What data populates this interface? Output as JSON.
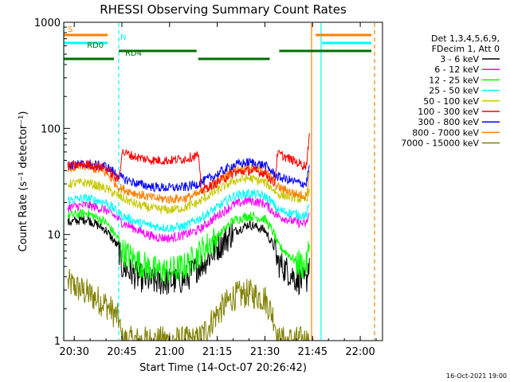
{
  "chart_data": {
    "type": "line",
    "title": "RHESSI Observing Summary Count Rates",
    "xlabel": "Start Time (14-Oct-07 20:26:42)",
    "ylabel": "Count Rate (s⁻¹ detector⁻¹)",
    "xlim": [
      "20:26:42",
      "22:07:00"
    ],
    "ylim": [
      1,
      1000
    ],
    "yscale": "log",
    "x_ticks": [
      "20:30",
      "20:45",
      "21:00",
      "21:15",
      "21:30",
      "21:45",
      "22:00"
    ],
    "y_ticks": [
      "1",
      "10",
      "100",
      "1000"
    ],
    "legend_header": [
      "Det 1,3,4,5,6,9,",
      "FDecim 1, Att 0"
    ],
    "legend_position": "right",
    "timestamp": "16-Oct-2021 19:00",
    "annotations": [
      {
        "text": "S",
        "color": "#ff8000"
      },
      {
        "text": "N",
        "color": "#00ffff"
      },
      {
        "text": "RD0",
        "color": "#007000"
      },
      {
        "text": "RD4",
        "color": "#007000"
      }
    ],
    "vertical_markers": [
      {
        "time": "20:26:42",
        "color": "#00ffff",
        "style": "solid"
      },
      {
        "time": "20:44:00",
        "color": "#00ffff",
        "style": "dashed"
      },
      {
        "time": "21:44:40",
        "color": "#ff8000",
        "style": "solid"
      },
      {
        "time": "21:47:40",
        "color": "#00ffff",
        "style": "solid"
      },
      {
        "time": "22:04:30",
        "color": "#ff8000",
        "style": "dashed"
      }
    ],
    "flag_bars": [
      {
        "label": "S",
        "color": "#ff8000",
        "y_level": 1,
        "segments": [
          [
            "20:26:42",
            "20:40:30"
          ],
          [
            "21:46:00",
            "22:03:30"
          ]
        ]
      },
      {
        "label": "N",
        "color": "#00ffff",
        "y_level": 2,
        "segments": [
          [
            "20:26:42",
            "20:40:30"
          ],
          [
            "21:48:00",
            "22:03:30"
          ]
        ]
      },
      {
        "label": "RD0",
        "color": "#007000",
        "y_level": 3,
        "segments": [
          [
            "20:44:00",
            "21:08:30"
          ],
          [
            "21:34:30",
            "22:03:30"
          ]
        ]
      },
      {
        "label": "RD4",
        "color": "#007000",
        "y_level": 4,
        "segments": [
          [
            "20:26:42",
            "20:42:30"
          ],
          [
            "21:09:00",
            "21:31:30"
          ]
        ]
      }
    ],
    "x": [
      "20:28",
      "20:34",
      "20:40",
      "20:44",
      "20:45",
      "20:50",
      "20:55",
      "21:00",
      "21:05",
      "21:09",
      "21:10",
      "21:15",
      "21:20",
      "21:25",
      "21:30",
      "21:33",
      "21:34",
      "21:40",
      "21:43",
      "21:44"
    ],
    "series": [
      {
        "name": "3 - 6 keV",
        "color": "#000000",
        "values": [
          13,
          14,
          11,
          7.5,
          5.0,
          4.0,
          3.6,
          3.6,
          3.8,
          5.0,
          5.2,
          7.5,
          10.5,
          12.5,
          11,
          7.5,
          5.5,
          3.8,
          3.5,
          6
        ]
      },
      {
        "name": "6 - 12 keV",
        "color": "#ff00ff",
        "values": [
          18,
          19,
          17,
          14,
          13,
          11,
          9.5,
          9.2,
          10,
          11,
          11.5,
          15,
          19,
          21,
          19.5,
          16,
          15,
          13,
          12.5,
          16
        ]
      },
      {
        "name": "12 - 25 keV",
        "color": "#00ff00",
        "values": [
          15,
          16,
          13,
          9,
          7,
          5.5,
          4.6,
          4.5,
          5,
          6.5,
          7,
          9.5,
          13.5,
          15,
          14,
          10,
          8,
          5.5,
          5,
          8
        ]
      },
      {
        "name": "25 - 50 keV",
        "color": "#00ffff",
        "values": [
          21,
          22,
          20,
          16,
          15,
          13,
          12,
          11.5,
          12,
          14,
          14.5,
          18,
          23,
          24.5,
          23,
          19,
          17,
          15.5,
          15,
          19
        ]
      },
      {
        "name": "50 - 100 keV",
        "color": "#c8c800",
        "values": [
          30,
          31,
          27,
          23,
          22,
          19,
          17.5,
          17,
          18,
          20,
          21,
          26,
          32,
          34,
          31,
          26,
          24,
          22,
          21,
          27
        ]
      },
      {
        "name": "100 - 300 keV",
        "color": "#ff0000",
        "values": [
          44,
          46,
          42,
          32,
          60,
          53,
          50,
          50,
          52,
          56,
          26,
          31,
          38,
          40,
          38,
          30,
          58,
          48,
          44,
          90
        ]
      },
      {
        "name": "300 - 800 keV",
        "color": "#0000ff",
        "values": [
          45,
          46,
          44,
          36,
          34,
          30,
          28,
          27.5,
          28,
          30,
          31,
          37,
          45,
          48,
          45,
          37,
          35,
          31,
          30,
          45
        ]
      },
      {
        "name": "800 - 7000 keV",
        "color": "#ff8000",
        "values": [
          42,
          44,
          38,
          28,
          27,
          24,
          22,
          21.5,
          22,
          24,
          25,
          31,
          40,
          43,
          40,
          31,
          28,
          24,
          23,
          40
        ]
      },
      {
        "name": "7000 - 15000 keV",
        "color": "#808000",
        "values": [
          3.5,
          2.8,
          2.2,
          1.6,
          1.0,
          1.0,
          1.0,
          1.0,
          1.0,
          1.0,
          1.1,
          1.8,
          2.6,
          2.8,
          2.5,
          1.6,
          1.0,
          1.0,
          1.0,
          1.0
        ]
      }
    ]
  }
}
